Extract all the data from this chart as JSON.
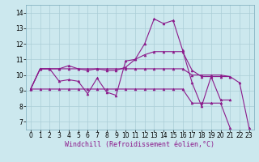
{
  "xlabel": "Windchill (Refroidissement éolien,°C)",
  "background_color": "#cce8ee",
  "line_color": "#8b1a8b",
  "xlim": [
    -0.5,
    23.5
  ],
  "ylim": [
    6.5,
    14.5
  ],
  "yticks": [
    7,
    8,
    9,
    10,
    11,
    12,
    13,
    14
  ],
  "xticks": [
    0,
    1,
    2,
    3,
    4,
    5,
    6,
    7,
    8,
    9,
    10,
    11,
    12,
    13,
    14,
    15,
    16,
    17,
    18,
    19,
    20,
    21,
    22,
    23
  ],
  "series": [
    {
      "x": [
        0,
        1,
        2,
        3,
        4,
        5,
        6,
        7,
        8,
        9,
        10,
        11,
        12,
        13,
        14,
        15,
        16,
        17,
        18,
        19,
        20,
        21
      ],
      "y": [
        9.1,
        10.4,
        10.4,
        9.6,
        9.7,
        9.6,
        8.8,
        9.8,
        8.9,
        8.7,
        10.9,
        11.0,
        12.0,
        13.6,
        13.3,
        13.5,
        11.6,
        9.5,
        8.0,
        9.9,
        8.4,
        8.4
      ]
    },
    {
      "x": [
        0,
        1,
        2,
        3,
        4,
        5,
        6,
        7,
        8,
        9,
        10,
        11,
        12,
        13,
        14,
        15,
        16,
        17,
        18,
        19,
        20,
        21,
        22,
        23
      ],
      "y": [
        9.1,
        10.4,
        10.4,
        10.4,
        10.4,
        10.4,
        10.4,
        10.4,
        10.4,
        10.4,
        10.4,
        10.4,
        10.4,
        10.4,
        10.4,
        10.4,
        10.4,
        10.0,
        10.0,
        10.0,
        10.0,
        9.9,
        9.5,
        6.6
      ]
    },
    {
      "x": [
        0,
        1,
        2,
        3,
        4,
        5,
        6,
        7,
        8,
        9,
        10,
        11,
        12,
        13,
        14,
        15,
        16,
        17,
        18,
        19,
        20,
        21
      ],
      "y": [
        9.1,
        10.4,
        10.4,
        10.4,
        10.6,
        10.4,
        10.3,
        10.4,
        10.3,
        10.3,
        10.5,
        11.0,
        11.3,
        11.5,
        11.5,
        11.5,
        11.5,
        10.3,
        9.9,
        9.9,
        9.9,
        9.9
      ]
    },
    {
      "x": [
        0,
        1,
        2,
        3,
        4,
        5,
        6,
        7,
        8,
        9,
        10,
        11,
        12,
        13,
        14,
        15,
        16,
        17,
        18,
        19,
        20,
        21
      ],
      "y": [
        9.1,
        9.1,
        9.1,
        9.1,
        9.1,
        9.1,
        9.1,
        9.1,
        9.1,
        9.1,
        9.1,
        9.1,
        9.1,
        9.1,
        9.1,
        9.1,
        9.1,
        8.2,
        8.2,
        8.2,
        8.2,
        6.6
      ]
    }
  ],
  "font_size_label": 6,
  "font_size_tick": 5.5,
  "grid_color": "#aacdd6",
  "marker_size": 2.0,
  "line_width": 0.8
}
